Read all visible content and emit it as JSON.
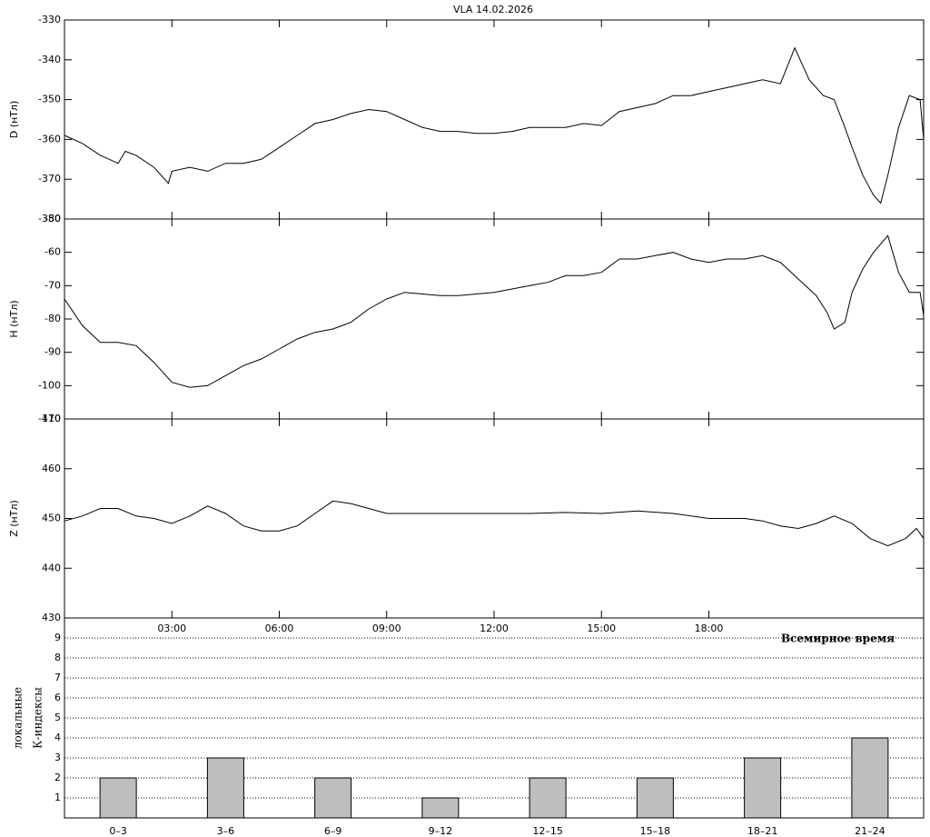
{
  "chart_data": [
    {
      "type": "line",
      "title": "VLA   14.02.2026",
      "ylabel": "D (нТл)",
      "xlim": [
        0,
        24
      ],
      "ylim": [
        -380,
        -330
      ],
      "yticks": [
        -330,
        -340,
        -350,
        -360,
        -370,
        -380
      ],
      "x": [
        0,
        0.5,
        1,
        1.5,
        1.7,
        2,
        2.5,
        2.9,
        3,
        3.5,
        4,
        4.5,
        5,
        5.5,
        6,
        6.5,
        7,
        7.5,
        8,
        8.5,
        9,
        9.5,
        10,
        10.5,
        11,
        11.5,
        12,
        12.5,
        13,
        13.5,
        14,
        14.5,
        15,
        15.5,
        16,
        16.5,
        17,
        17.5,
        18,
        18.5,
        19,
        19.5,
        20,
        20.4,
        20.8,
        21.2,
        21.5,
        21.8,
        22,
        22.3,
        22.6,
        22.8,
        23,
        23.3,
        23.6,
        23.9,
        24
      ],
      "series": [
        {
          "color": "#000000",
          "values": [
            -359,
            -361,
            -364,
            -366,
            -363,
            -364,
            -367,
            -371,
            -368,
            -367,
            -368,
            -366,
            -366,
            -365,
            -362,
            -359,
            -356,
            -355,
            -353.5,
            -352.5,
            -353,
            -355,
            -357,
            -358,
            -358,
            -358.5,
            -358.5,
            -358,
            -357,
            -357,
            -357,
            -356,
            -356.5,
            -353,
            -352,
            -351,
            -349,
            -349,
            -348,
            -347,
            -346,
            -345,
            -346,
            -337,
            -345,
            -349,
            -350,
            -357,
            -362,
            -369,
            -374,
            -376,
            -369,
            -357,
            -349,
            -350,
            -360
          ]
        }
      ]
    },
    {
      "type": "line",
      "ylabel": "H (нТл)",
      "xlim": [
        0,
        24
      ],
      "ylim": [
        -110,
        -50
      ],
      "yticks": [
        -50,
        -60,
        -70,
        -80,
        -90,
        -100,
        -110
      ],
      "x": [
        0,
        0.5,
        1,
        1.5,
        2,
        2.5,
        3,
        3.5,
        4,
        4.5,
        5,
        5.5,
        6,
        6.5,
        7,
        7.5,
        8,
        8.5,
        9,
        9.5,
        10,
        10.5,
        11,
        11.5,
        12,
        12.5,
        13,
        13.5,
        14,
        14.5,
        15,
        15.5,
        16,
        16.5,
        17,
        17.5,
        18,
        18.5,
        19,
        19.5,
        20,
        20.5,
        21,
        21.3,
        21.5,
        21.8,
        22,
        22.3,
        22.6,
        23,
        23.3,
        23.6,
        23.9,
        24
      ],
      "series": [
        {
          "color": "#000000",
          "values": [
            -74,
            -82,
            -87,
            -87,
            -88,
            -93,
            -99,
            -100.5,
            -100,
            -97,
            -94,
            -92,
            -89,
            -86,
            -84,
            -83,
            -81,
            -77,
            -74,
            -72,
            -72.5,
            -73,
            -73,
            -72.5,
            -72,
            -71,
            -70,
            -69,
            -67,
            -67,
            -66,
            -62,
            -62,
            -61,
            -60,
            -62,
            -63,
            -62,
            -62,
            -61,
            -63,
            -68,
            -73,
            -78,
            -83,
            -81,
            -72,
            -65,
            -60,
            -55,
            -66,
            -72,
            -72,
            -79
          ]
        }
      ]
    },
    {
      "type": "line",
      "ylabel": "Z (нТл)",
      "xlabel": "Всемирное время",
      "xlim": [
        0,
        24
      ],
      "ylim": [
        430,
        470
      ],
      "yticks": [
        430,
        440,
        450,
        460,
        470
      ],
      "xticks": [
        {
          "value": 3,
          "label": "03:00"
        },
        {
          "value": 6,
          "label": "06:00"
        },
        {
          "value": 9,
          "label": "09:00"
        },
        {
          "value": 12,
          "label": "12:00"
        },
        {
          "value": 15,
          "label": "15:00"
        },
        {
          "value": 18,
          "label": "18:00"
        }
      ],
      "x": [
        0,
        0.5,
        1,
        1.5,
        2,
        2.5,
        3,
        3.5,
        4,
        4.5,
        5,
        5.5,
        6,
        6.5,
        7,
        7.5,
        8,
        8.5,
        9,
        10,
        11,
        12,
        13,
        14,
        15,
        16,
        17,
        18,
        18.5,
        19,
        19.5,
        20,
        20.5,
        21,
        21.5,
        22,
        22.5,
        23,
        23.5,
        23.8,
        24
      ],
      "series": [
        {
          "color": "#000000",
          "values": [
            449.5,
            450.5,
            452,
            452,
            450.5,
            450,
            449,
            450.5,
            452.5,
            451,
            448.5,
            447.5,
            447.5,
            448.5,
            451,
            453.5,
            453,
            452,
            451,
            451,
            451,
            451,
            451,
            451.2,
            451,
            451.5,
            451,
            450,
            450,
            450,
            449.5,
            448.5,
            448,
            449,
            450.5,
            449,
            446,
            444.5,
            446,
            448,
            446
          ]
        }
      ]
    },
    {
      "type": "bar",
      "ylabel": [
        "локальные",
        "К-индексы"
      ],
      "ylim": [
        0,
        10
      ],
      "yticks": [
        1,
        2,
        3,
        4,
        5,
        6,
        7,
        8,
        9
      ],
      "grid": true,
      "color": "#bebebe",
      "categories": [
        "0–3",
        "3–6",
        "6–9",
        "9–12",
        "12–15",
        "15–18",
        "18–21",
        "21–24"
      ],
      "values": [
        2,
        3,
        2,
        1,
        2,
        2,
        3,
        4
      ]
    }
  ]
}
